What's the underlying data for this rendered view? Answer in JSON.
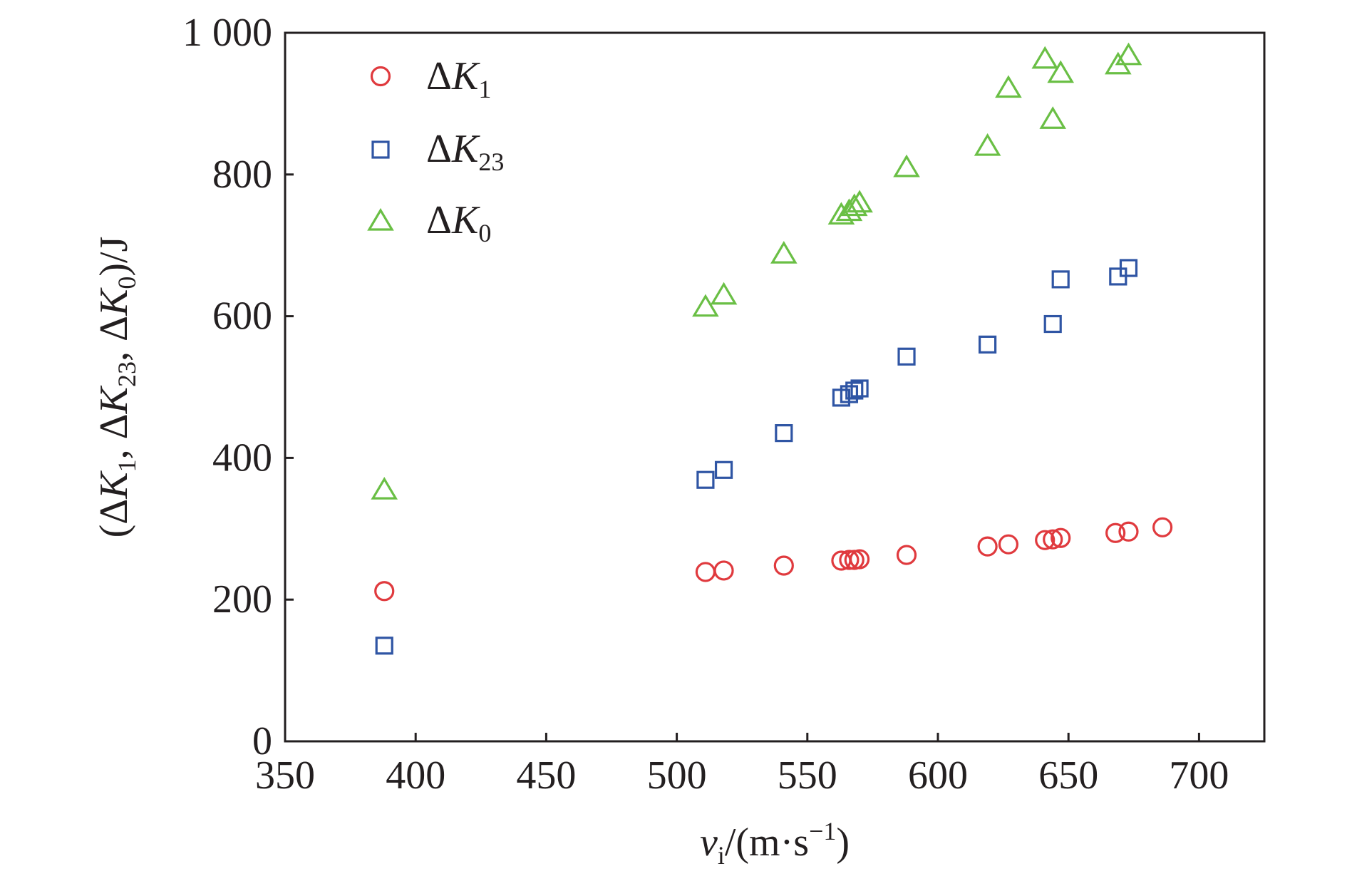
{
  "chart_data": {
    "type": "scatter",
    "xlabel": {
      "var": "v",
      "var_sub": "i",
      "unit_pre": "/(m·s",
      "unit_sup": "−1",
      "unit_post": ")"
    },
    "ylabel": {
      "prefix": "(",
      "parts": [
        {
          "delta": "Δ",
          "var": "K",
          "sub": "1",
          "after": ", "
        },
        {
          "delta": "Δ",
          "var": "K",
          "sub": "23",
          "after": ", "
        },
        {
          "delta": "Δ",
          "var": "K",
          "sub": "0",
          "after": ""
        }
      ],
      "suffix": ")/J"
    },
    "xlim": [
      350,
      725
    ],
    "ylim": [
      0,
      1000
    ],
    "xticks": [
      350,
      400,
      450,
      500,
      550,
      600,
      650,
      700
    ],
    "yticks": [
      0,
      200,
      400,
      600,
      800,
      1000
    ],
    "xtick_labels": [
      "350",
      "400",
      "450",
      "500",
      "550",
      "600",
      "650",
      "700"
    ],
    "ytick_labels": [
      "0",
      "200",
      "400",
      "600",
      "800",
      "1 000"
    ],
    "legend_position": "top-left",
    "series": [
      {
        "name": "ΔK1",
        "legend": {
          "delta": "Δ",
          "var": "K",
          "sub": "1"
        },
        "marker": "circle",
        "color": "#e03a3e",
        "points": [
          [
            388,
            212
          ],
          [
            511,
            239
          ],
          [
            518,
            241
          ],
          [
            541,
            248
          ],
          [
            563,
            255
          ],
          [
            566,
            256
          ],
          [
            568,
            256
          ],
          [
            570,
            257
          ],
          [
            588,
            263
          ],
          [
            619,
            275
          ],
          [
            627,
            278
          ],
          [
            641,
            284
          ],
          [
            644,
            285
          ],
          [
            647,
            287
          ],
          [
            668,
            294
          ],
          [
            673,
            296
          ],
          [
            686,
            302
          ]
        ]
      },
      {
        "name": "ΔK23",
        "legend": {
          "delta": "Δ",
          "var": "K",
          "sub": "23"
        },
        "marker": "square",
        "color": "#2f55a4",
        "points": [
          [
            388,
            135
          ],
          [
            511,
            369
          ],
          [
            518,
            383
          ],
          [
            541,
            435
          ],
          [
            563,
            485
          ],
          [
            566,
            490
          ],
          [
            568,
            495
          ],
          [
            570,
            498
          ],
          [
            588,
            543
          ],
          [
            619,
            560
          ],
          [
            644,
            589
          ],
          [
            647,
            652
          ],
          [
            669,
            656
          ],
          [
            673,
            668
          ]
        ]
      },
      {
        "name": "ΔK0",
        "legend": {
          "delta": "Δ",
          "var": "K",
          "sub": "0"
        },
        "marker": "triangle",
        "color": "#6abf45",
        "points": [
          [
            388,
            355
          ],
          [
            511,
            613
          ],
          [
            518,
            630
          ],
          [
            541,
            688
          ],
          [
            563,
            743
          ],
          [
            566,
            748
          ],
          [
            568,
            755
          ],
          [
            570,
            760
          ],
          [
            588,
            810
          ],
          [
            619,
            840
          ],
          [
            627,
            922
          ],
          [
            641,
            963
          ],
          [
            644,
            878
          ],
          [
            647,
            943
          ],
          [
            669,
            955
          ],
          [
            673,
            968
          ]
        ]
      }
    ]
  }
}
